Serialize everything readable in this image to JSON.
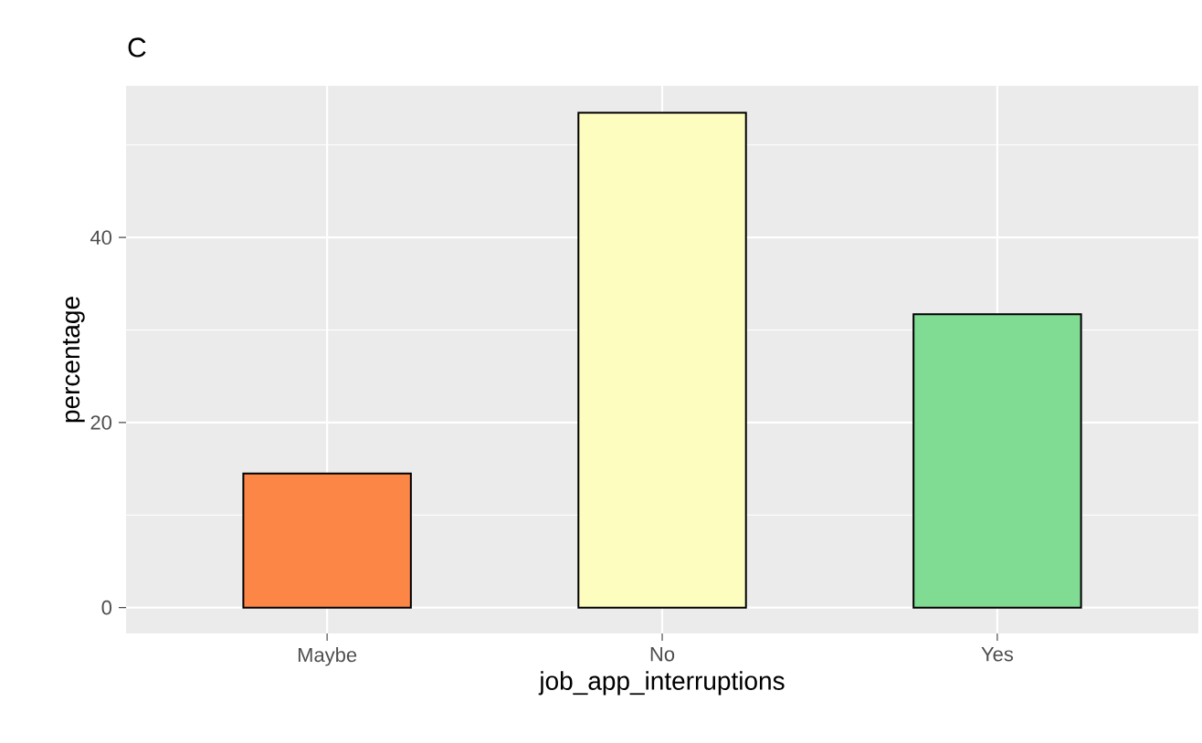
{
  "chart_data": {
    "type": "bar",
    "title": "C",
    "xlabel": "job_app_interruptions",
    "ylabel": "percentage",
    "categories": [
      "Maybe",
      "No",
      "Yes"
    ],
    "values": [
      14.5,
      53.5,
      31.7
    ],
    "colors": [
      "#fc8646",
      "#fdfdc0",
      "#80db93"
    ],
    "ylim": [
      -2.8,
      56.4
    ],
    "yticks": [
      0,
      20,
      40
    ],
    "grid": true
  }
}
